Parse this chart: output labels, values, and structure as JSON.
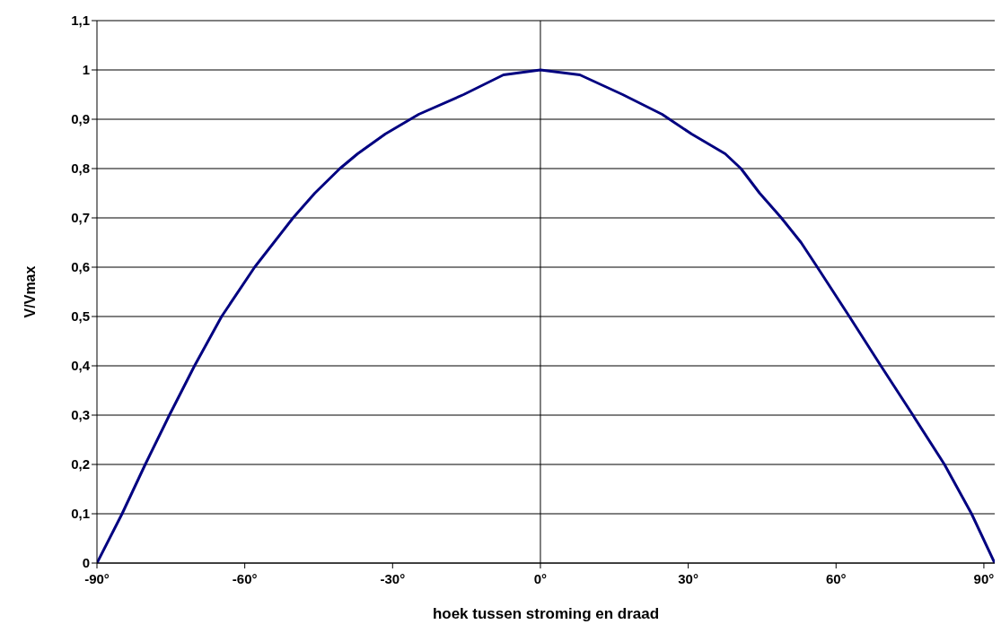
{
  "chart_data": {
    "type": "line",
    "xlabel": "hoek tussen stroming en draad",
    "ylabel": "V/Vmax",
    "x": [
      -90,
      -84.9,
      -80.2,
      -75.3,
      -70.2,
      -64.7,
      -58,
      -50.2,
      -45.8,
      -40.7,
      -37.1,
      -31.5,
      -24.7,
      -15.6,
      -7.5,
      0,
      8,
      16.7,
      24.7,
      30.7,
      37.5,
      40.7,
      44.5,
      48.9,
      52.9,
      56.2,
      62.7,
      69.1,
      75.6,
      82,
      87.5,
      92.2
    ],
    "series": [
      {
        "color": "#000080",
        "values": [
          0,
          0.1,
          0.2,
          0.3,
          0.4,
          0.5,
          0.6,
          0.7,
          0.75,
          0.8,
          0.83,
          0.87,
          0.91,
          0.95,
          0.99,
          1,
          0.99,
          0.95,
          0.91,
          0.87,
          0.83,
          0.8,
          0.75,
          0.7,
          0.65,
          0.6,
          0.5,
          0.4,
          0.3,
          0.2,
          0.1,
          0
        ]
      }
    ],
    "xlim": [
      -90,
      92.2
    ],
    "xticks": [
      {
        "value": -90,
        "label": "-90°"
      },
      {
        "value": -60,
        "label": "-60°"
      },
      {
        "value": -30,
        "label": "-30°"
      },
      {
        "value": 0,
        "label": "0°"
      },
      {
        "value": 30,
        "label": "30°"
      },
      {
        "value": 60,
        "label": "60°"
      },
      {
        "value": 90,
        "label": "90°"
      }
    ],
    "ylim": [
      0,
      1.1
    ],
    "yticks": [
      0,
      {
        "value": 0.1,
        "label": "0,1"
      },
      {
        "value": 0.2,
        "label": "0,2"
      },
      {
        "value": 0.3,
        "label": "0,3"
      },
      {
        "value": 0.4,
        "label": "0,4"
      },
      {
        "value": 0.5,
        "label": "0,5"
      },
      {
        "value": 0.6,
        "label": "0,6"
      },
      {
        "value": 0.7,
        "label": "0,7"
      },
      {
        "value": 0.8,
        "label": "0,8"
      },
      {
        "value": 0.9,
        "label": "0,9"
      },
      1,
      {
        "value": 1.1,
        "label": "1,1"
      }
    ],
    "grid": "y",
    "marker": "none",
    "line_style": "solid",
    "ref_lines": [
      {
        "axis": "x",
        "value": 0,
        "color": "#000000"
      }
    ]
  }
}
